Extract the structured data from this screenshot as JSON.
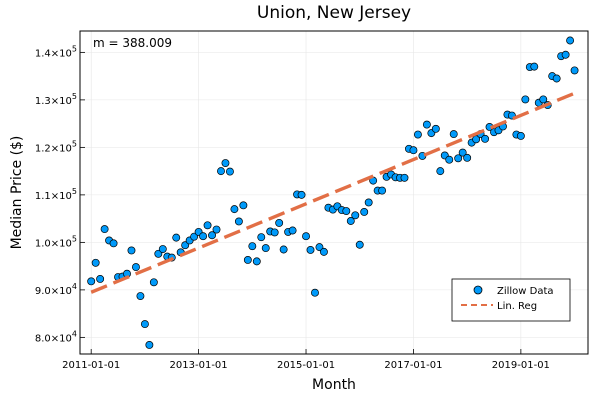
{
  "chart_data": {
    "type": "scatter",
    "title": "Union, New Jersey",
    "xlabel": "Month",
    "ylabel": "Median Price ($)",
    "annotation": "m = 388.009",
    "x_tick_labels": [
      "2011-01-01",
      "2013-01-01",
      "2015-01-01",
      "2017-01-01",
      "2019-01-01"
    ],
    "x_tick_months": [
      0,
      24,
      48,
      72,
      96
    ],
    "y_tick_values": [
      80000,
      90000,
      100000,
      110000,
      120000,
      130000,
      140000
    ],
    "y_tick_mantissas": [
      "8.0",
      "9.0",
      "1.0",
      "1.1",
      "1.2",
      "1.3",
      "1.4"
    ],
    "y_tick_exponents": [
      "4",
      "4",
      "5",
      "5",
      "5",
      "5",
      "5"
    ],
    "y_tick_base": "×10",
    "xlim": [
      -2.5,
      111
    ],
    "ylim": [
      76500,
      144500
    ],
    "grid": true,
    "legend_position": "bottom-right",
    "series": [
      {
        "name": "Zillow Data",
        "kind": "scatter",
        "color": "#009AFA",
        "x_start": "2011-01-01",
        "x_step": "1 month",
        "values": [
          91800,
          95700,
          92300,
          102800,
          100400,
          99800,
          92700,
          92800,
          93400,
          98300,
          94800,
          88700,
          82800,
          78400,
          91600,
          97600,
          98600,
          97000,
          96800,
          101000,
          97900,
          99400,
          100400,
          101200,
          102200,
          101300,
          103600,
          101500,
          102700,
          115000,
          116700,
          114900,
          107000,
          104400,
          107800,
          96300,
          99200,
          96000,
          101100,
          98800,
          102300,
          102100,
          104100,
          98500,
          102200,
          102500,
          110100,
          110000,
          101300,
          98400,
          89400,
          99000,
          98000,
          107300,
          106900,
          107600,
          106800,
          106600,
          104500,
          105700,
          99500,
          106400,
          108400,
          113000,
          110900,
          110900,
          113800,
          114300,
          113700,
          113600,
          113600,
          119700,
          119400,
          122700,
          118200,
          124800,
          123000,
          123900,
          115000,
          118300,
          117400,
          122800,
          117700,
          118900,
          117800,
          121000,
          121700,
          122800,
          121800,
          124300,
          123200,
          123600,
          124400,
          126900,
          126700,
          122700,
          122400,
          130100,
          136900,
          137000,
          129400,
          130100,
          128900,
          135000,
          134500,
          139200,
          139500,
          142500,
          136200
        ]
      },
      {
        "name": "Lin. Reg",
        "kind": "line",
        "color": "#E26F46",
        "x": [
          0,
          108
        ],
        "y": [
          89500,
          131400
        ]
      }
    ]
  }
}
